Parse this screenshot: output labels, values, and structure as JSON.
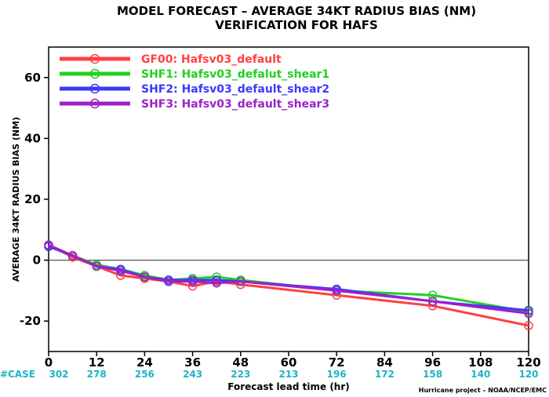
{
  "title_line1": "MODEL FORECAST – AVERAGE 34KT RADIUS BIAS (NM)",
  "title_line2": "VERIFICATION FOR HAFS",
  "credit": "Hurricane project – NOAA/NCEP/EMC",
  "case_label": "#CASE",
  "chart_data": {
    "type": "line",
    "xlabel": "Forecast lead time (hr)",
    "ylabel": "AVERAGE 34KT RADIUS BIAS (NM)",
    "xlim": [
      0,
      120
    ],
    "ylim": [
      -30,
      70
    ],
    "xticks": [
      0,
      12,
      24,
      36,
      48,
      60,
      72,
      84,
      96,
      108,
      120
    ],
    "yticks": [
      -20,
      0,
      20,
      40,
      60
    ],
    "zero_line": true,
    "grid": false,
    "legend_position": "top-left",
    "case_counts": {
      "x": [
        0,
        12,
        24,
        36,
        48,
        60,
        72,
        84,
        96,
        108,
        120
      ],
      "values": [
        "302",
        "278",
        "256",
        "243",
        "223",
        "213",
        "196",
        "172",
        "158",
        "140",
        "120"
      ]
    },
    "series": [
      {
        "name": "GF00: Hafsv03_default",
        "color": "#ff4040",
        "x": [
          0,
          6,
          12,
          18,
          24,
          30,
          36,
          42,
          48,
          72,
          96,
          120
        ],
        "values": [
          5,
          1,
          -2,
          -5,
          -6,
          -7,
          -8.5,
          -7,
          -8,
          -11.5,
          -15,
          -21.5
        ]
      },
      {
        "name": "SHF1: Hafsv03_defalut_shear1",
        "color": "#22d022",
        "x": [
          0,
          6,
          12,
          18,
          24,
          30,
          36,
          42,
          48,
          72,
          96,
          120
        ],
        "values": [
          4.5,
          1.5,
          -1.5,
          -3,
          -5,
          -6.5,
          -6,
          -5.5,
          -6.5,
          -10,
          -11.5,
          -17
        ]
      },
      {
        "name": "SHF2: Hafsv03_default_shear2",
        "color": "#3a3aff",
        "x": [
          0,
          6,
          12,
          18,
          24,
          30,
          36,
          42,
          48,
          72,
          96,
          120
        ],
        "values": [
          4.5,
          1.5,
          -2,
          -3,
          -5.5,
          -6.5,
          -6.5,
          -6.5,
          -7,
          -9.5,
          -13.5,
          -16.5
        ]
      },
      {
        "name": "SHF3: Hafsv03_default_shear3",
        "color": "#a020c8",
        "x": [
          0,
          6,
          12,
          18,
          24,
          30,
          36,
          42,
          48,
          72,
          96,
          120
        ],
        "values": [
          5,
          1.5,
          -2,
          -3.5,
          -5.5,
          -7,
          -7,
          -7.5,
          -7,
          -10,
          -13.5,
          -17.5
        ]
      }
    ]
  }
}
